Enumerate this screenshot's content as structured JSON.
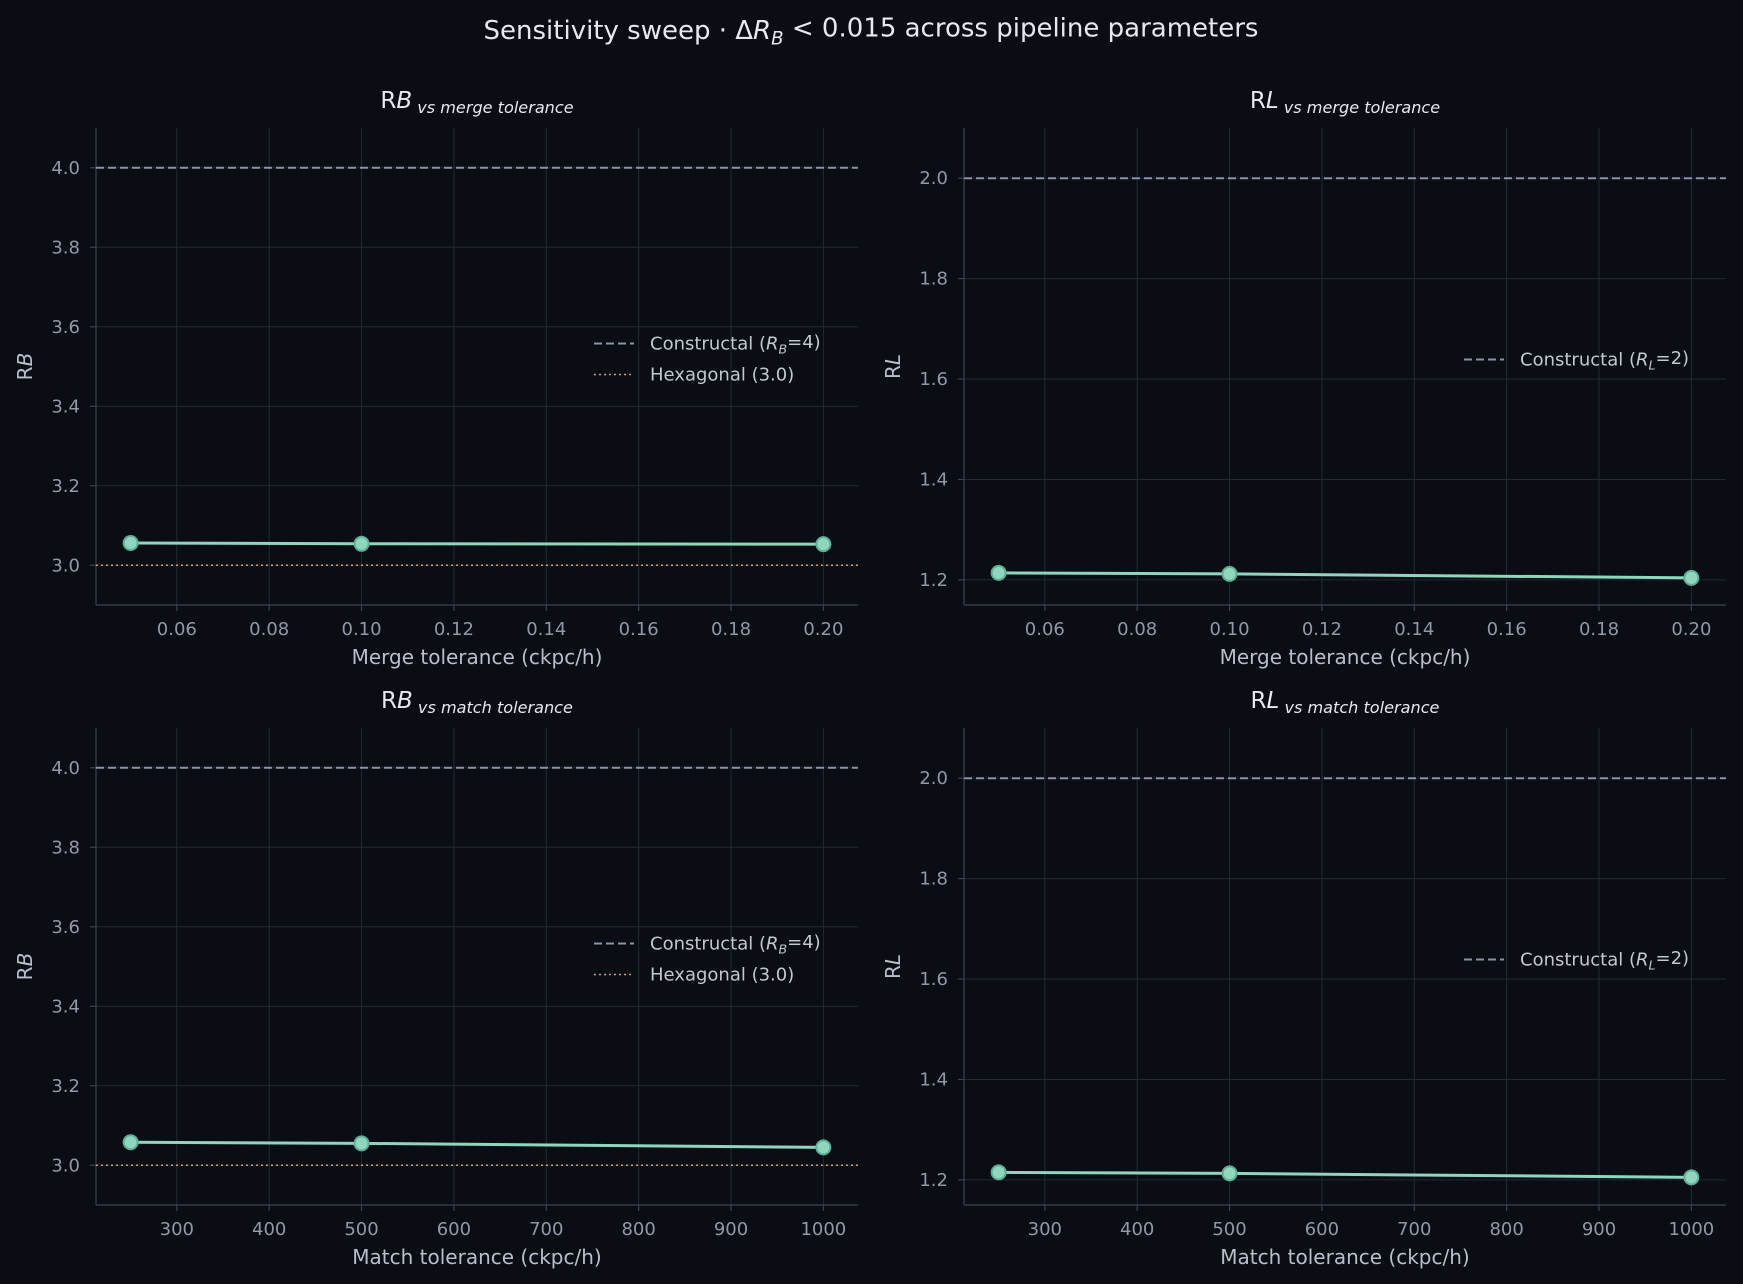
{
  "figure": {
    "suptitle_parts": [
      "Sensitivity sweep · Δ",
      "R",
      "B",
      " < 0.015 across pipeline parameters"
    ]
  },
  "colors": {
    "background": "#0a0d14",
    "series": "#8fd6bd",
    "marker_edge": "#5fae97",
    "constructal_line": "#8a93a6",
    "hexagonal_line": "#d39a6a"
  },
  "chart_data": [
    {
      "type": "line",
      "title_parts": [
        "R",
        "B",
        " vs merge tolerance"
      ],
      "xlabel": "Merge tolerance (ckpc/h)",
      "ylabel_parts": [
        "R",
        "B"
      ],
      "x": [
        0.05,
        0.1,
        0.2
      ],
      "y": [
        3.056,
        3.054,
        3.053
      ],
      "xlim": [
        0.0425,
        0.2075
      ],
      "ylim": [
        2.9,
        4.1
      ],
      "xticks": [
        0.06,
        0.08,
        0.1,
        0.12,
        0.14,
        0.16,
        0.18,
        0.2
      ],
      "xtick_labels": [
        "0.06",
        "0.08",
        "0.10",
        "0.12",
        "0.14",
        "0.16",
        "0.18",
        "0.20"
      ],
      "yticks": [
        3.0,
        3.2,
        3.4,
        3.6,
        3.8,
        4.0
      ],
      "ytick_labels": [
        "3.0",
        "3.2",
        "3.4",
        "3.6",
        "3.8",
        "4.0"
      ],
      "reference_lines": [
        {
          "y": 4.0,
          "style": "dashed",
          "label_parts": [
            "Constructal (",
            "R",
            "B",
            "=4)"
          ]
        },
        {
          "y": 3.0,
          "style": "dotted",
          "label_parts": [
            "Hexagonal (3.0)",
            "",
            "",
            ""
          ]
        }
      ],
      "legend_placement": "center-right",
      "grid": true
    },
    {
      "type": "line",
      "title_parts": [
        "R",
        "L",
        " vs merge tolerance"
      ],
      "xlabel": "Merge tolerance (ckpc/h)",
      "ylabel_parts": [
        "R",
        "L"
      ],
      "x": [
        0.05,
        0.1,
        0.2
      ],
      "y": [
        1.214,
        1.212,
        1.204
      ],
      "xlim": [
        0.0425,
        0.2075
      ],
      "ylim": [
        1.15,
        2.1
      ],
      "xticks": [
        0.06,
        0.08,
        0.1,
        0.12,
        0.14,
        0.16,
        0.18,
        0.2
      ],
      "xtick_labels": [
        "0.06",
        "0.08",
        "0.10",
        "0.12",
        "0.14",
        "0.16",
        "0.18",
        "0.20"
      ],
      "yticks": [
        1.2,
        1.4,
        1.6,
        1.8,
        2.0
      ],
      "ytick_labels": [
        "1.2",
        "1.4",
        "1.6",
        "1.8",
        "2.0"
      ],
      "reference_lines": [
        {
          "y": 2.0,
          "style": "dashed",
          "label_parts": [
            "Constructal (",
            "R",
            "L",
            "=2)"
          ]
        }
      ],
      "legend_placement": "center-right",
      "grid": true
    },
    {
      "type": "line",
      "title_parts": [
        "R",
        "B",
        " vs match tolerance"
      ],
      "xlabel": "Match tolerance (ckpc/h)",
      "ylabel_parts": [
        "R",
        "B"
      ],
      "x": [
        250,
        500,
        1000
      ],
      "y": [
        3.058,
        3.055,
        3.045
      ],
      "xlim": [
        212.5,
        1037.5
      ],
      "ylim": [
        2.9,
        4.1
      ],
      "xticks": [
        300,
        400,
        500,
        600,
        700,
        800,
        900,
        1000
      ],
      "xtick_labels": [
        "300",
        "400",
        "500",
        "600",
        "700",
        "800",
        "900",
        "1000"
      ],
      "yticks": [
        3.0,
        3.2,
        3.4,
        3.6,
        3.8,
        4.0
      ],
      "ytick_labels": [
        "3.0",
        "3.2",
        "3.4",
        "3.6",
        "3.8",
        "4.0"
      ],
      "reference_lines": [
        {
          "y": 4.0,
          "style": "dashed",
          "label_parts": [
            "Constructal (",
            "R",
            "B",
            "=4)"
          ]
        },
        {
          "y": 3.0,
          "style": "dotted",
          "label_parts": [
            "Hexagonal (3.0)",
            "",
            "",
            ""
          ]
        }
      ],
      "legend_placement": "center-right",
      "grid": true
    },
    {
      "type": "line",
      "title_parts": [
        "R",
        "L",
        " vs match tolerance"
      ],
      "xlabel": "Match tolerance (ckpc/h)",
      "ylabel_parts": [
        "R",
        "L"
      ],
      "x": [
        250,
        500,
        1000
      ],
      "y": [
        1.215,
        1.213,
        1.205
      ],
      "xlim": [
        212.5,
        1037.5
      ],
      "ylim": [
        1.15,
        2.1
      ],
      "xticks": [
        300,
        400,
        500,
        600,
        700,
        800,
        900,
        1000
      ],
      "xtick_labels": [
        "300",
        "400",
        "500",
        "600",
        "700",
        "800",
        "900",
        "1000"
      ],
      "yticks": [
        1.2,
        1.4,
        1.6,
        1.8,
        2.0
      ],
      "ytick_labels": [
        "1.2",
        "1.4",
        "1.6",
        "1.8",
        "2.0"
      ],
      "reference_lines": [
        {
          "y": 2.0,
          "style": "dashed",
          "label_parts": [
            "Constructal (",
            "R",
            "L",
            "=2)"
          ]
        }
      ],
      "legend_placement": "center-right",
      "grid": true
    }
  ]
}
